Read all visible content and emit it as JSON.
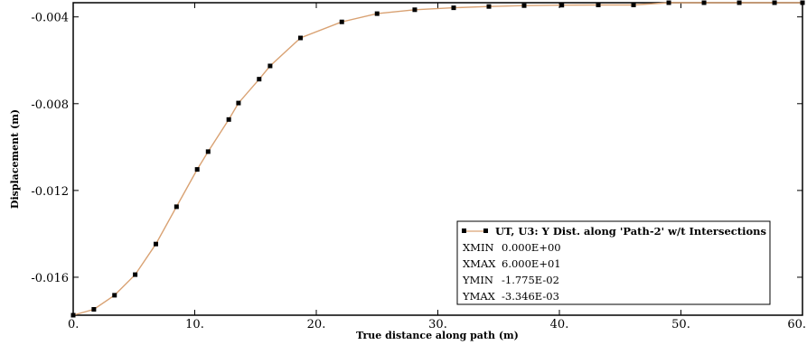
{
  "chart_data": {
    "type": "line",
    "xlabel": "True distance along path (m)",
    "ylabel": "Displacement (m)",
    "xlim": [
      0,
      60
    ],
    "ylim": [
      -0.01775,
      -0.003346
    ],
    "x_ticks": [
      0,
      10,
      20,
      30,
      40,
      50,
      60
    ],
    "x_tick_labels": [
      "0.",
      "10.",
      "20.",
      "30.",
      "40.",
      "50.",
      "60."
    ],
    "y_ticks": [
      -0.004,
      -0.008,
      -0.012,
      -0.016
    ],
    "y_tick_labels": [
      "-0.004",
      "-0.008",
      "-0.012",
      "-0.016"
    ],
    "grid": false,
    "legend_position": "bottom-right",
    "line_color": "#d9a273",
    "marker_color": "#000000",
    "series": [
      {
        "name": "UT, U3: Y Dist. along 'Path-2' w/t Intersections",
        "x": [
          0.0,
          1.7,
          3.4,
          5.1,
          6.8,
          8.5,
          10.2,
          11.1,
          12.8,
          13.6,
          15.3,
          16.2,
          18.7,
          22.1,
          25.0,
          28.1,
          31.3,
          34.2,
          37.1,
          40.2,
          43.2,
          46.1,
          49.0,
          51.9,
          54.8,
          57.7,
          60.0
        ],
        "values": [
          -0.01775,
          -0.01748,
          -0.01683,
          -0.01588,
          -0.01447,
          -0.01275,
          -0.01103,
          -0.01021,
          -0.00873,
          -0.00797,
          -0.00687,
          -0.00626,
          -0.00497,
          -0.00423,
          -0.00385,
          -0.00367,
          -0.00358,
          -0.00352,
          -0.00348,
          -0.00346,
          -0.00345,
          -0.00345,
          -0.003346,
          -0.003346,
          -0.003346,
          -0.003346,
          -0.003346
        ]
      }
    ],
    "legend_stats": [
      {
        "label": "XMIN",
        "value": "0.000E+00"
      },
      {
        "label": "XMAX",
        "value": "6.000E+01"
      },
      {
        "label": "YMIN",
        "value": "-1.775E-02"
      },
      {
        "label": "YMAX",
        "value": "-3.346E-03"
      }
    ]
  }
}
